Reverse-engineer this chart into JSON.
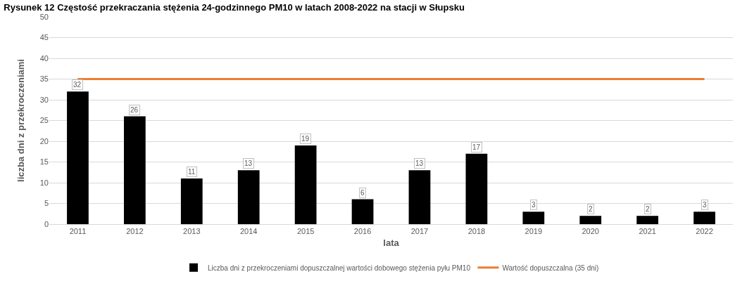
{
  "chart_data": {
    "type": "bar",
    "title": "Rysunek 12 Częstość przekraczania stężenia 24-godzinnego PM10 w latach 2008-2022 na stacji w Słupsku",
    "xlabel": "lata",
    "ylabel": "liczba dni z przekroczeniami",
    "categories": [
      "2011",
      "2012",
      "2013",
      "2014",
      "2015",
      "2016",
      "2017",
      "2018",
      "2019",
      "2020",
      "2021",
      "2022"
    ],
    "series": [
      {
        "name": "Liczba dni z przekroczeniami dopuszczalnej wartości dobowego stężenia pyłu PM10",
        "color": "#000000",
        "values": [
          32,
          26,
          11,
          13,
          19,
          6,
          13,
          17,
          3,
          2,
          2,
          3
        ],
        "value_labels": [
          "32",
          "26",
          "11",
          "13",
          "19",
          "6",
          "13",
          "17",
          "3",
          "2",
          "2",
          "3"
        ]
      },
      {
        "name": "Wartość dopuszczalna (35 dni)",
        "type": "line",
        "color": "#ed7d31",
        "values": [
          35,
          35,
          35,
          35,
          35,
          35,
          35,
          35,
          35,
          35,
          35,
          35
        ]
      }
    ],
    "ylim": [
      0,
      50
    ],
    "yticks": [
      0,
      5,
      10,
      15,
      20,
      25,
      30,
      35,
      40,
      45,
      50
    ],
    "grid": "y",
    "legend": "bottom",
    "marker": "none",
    "line_style": "solid"
  }
}
